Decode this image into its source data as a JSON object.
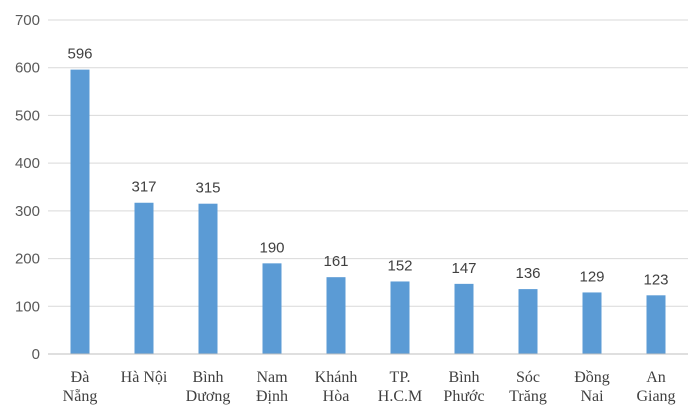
{
  "chart_data": {
    "type": "bar",
    "categories": [
      [
        "Đà",
        "Nẵng"
      ],
      [
        "Hà Nội"
      ],
      [
        "Bình",
        "Dương"
      ],
      [
        "Nam",
        "Định"
      ],
      [
        "Khánh",
        "Hòa"
      ],
      [
        "TP.",
        "H.C.M"
      ],
      [
        "Bình",
        "Phước"
      ],
      [
        "Sóc",
        "Trăng"
      ],
      [
        "Đồng",
        "Nai"
      ],
      [
        "An",
        "Giang"
      ]
    ],
    "values": [
      596,
      317,
      315,
      190,
      161,
      152,
      147,
      136,
      129,
      123
    ],
    "ylim": [
      0,
      700
    ],
    "yticks": [
      0,
      100,
      200,
      300,
      400,
      500,
      600,
      700
    ],
    "grid": true,
    "bar_color": "#5b9bd5",
    "legend": "none"
  }
}
